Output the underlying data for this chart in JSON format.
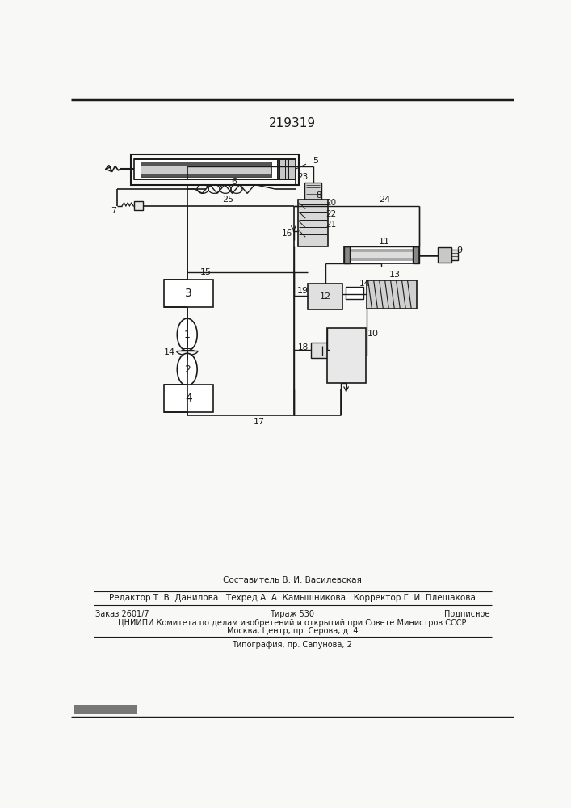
{
  "patent_number": "219319",
  "bg_color": "#f8f8f6",
  "lc": "#1a1a1a",
  "footer_lines": [
    "Составитель В. И. Василевская",
    "Редактор Т. В. Данилова   Техред А. А. Камышникова   Корректор Г. И. Плешакова",
    "Заказ 2601/7",
    "Тираж 530",
    "Подписное",
    "ЦНИИПИ Комитета по делам изобретений и открытий при Совете Министров СССР",
    "Москва, Центр, пр. Серова, д. 4",
    "Типография, пр. Сапунова, 2"
  ]
}
